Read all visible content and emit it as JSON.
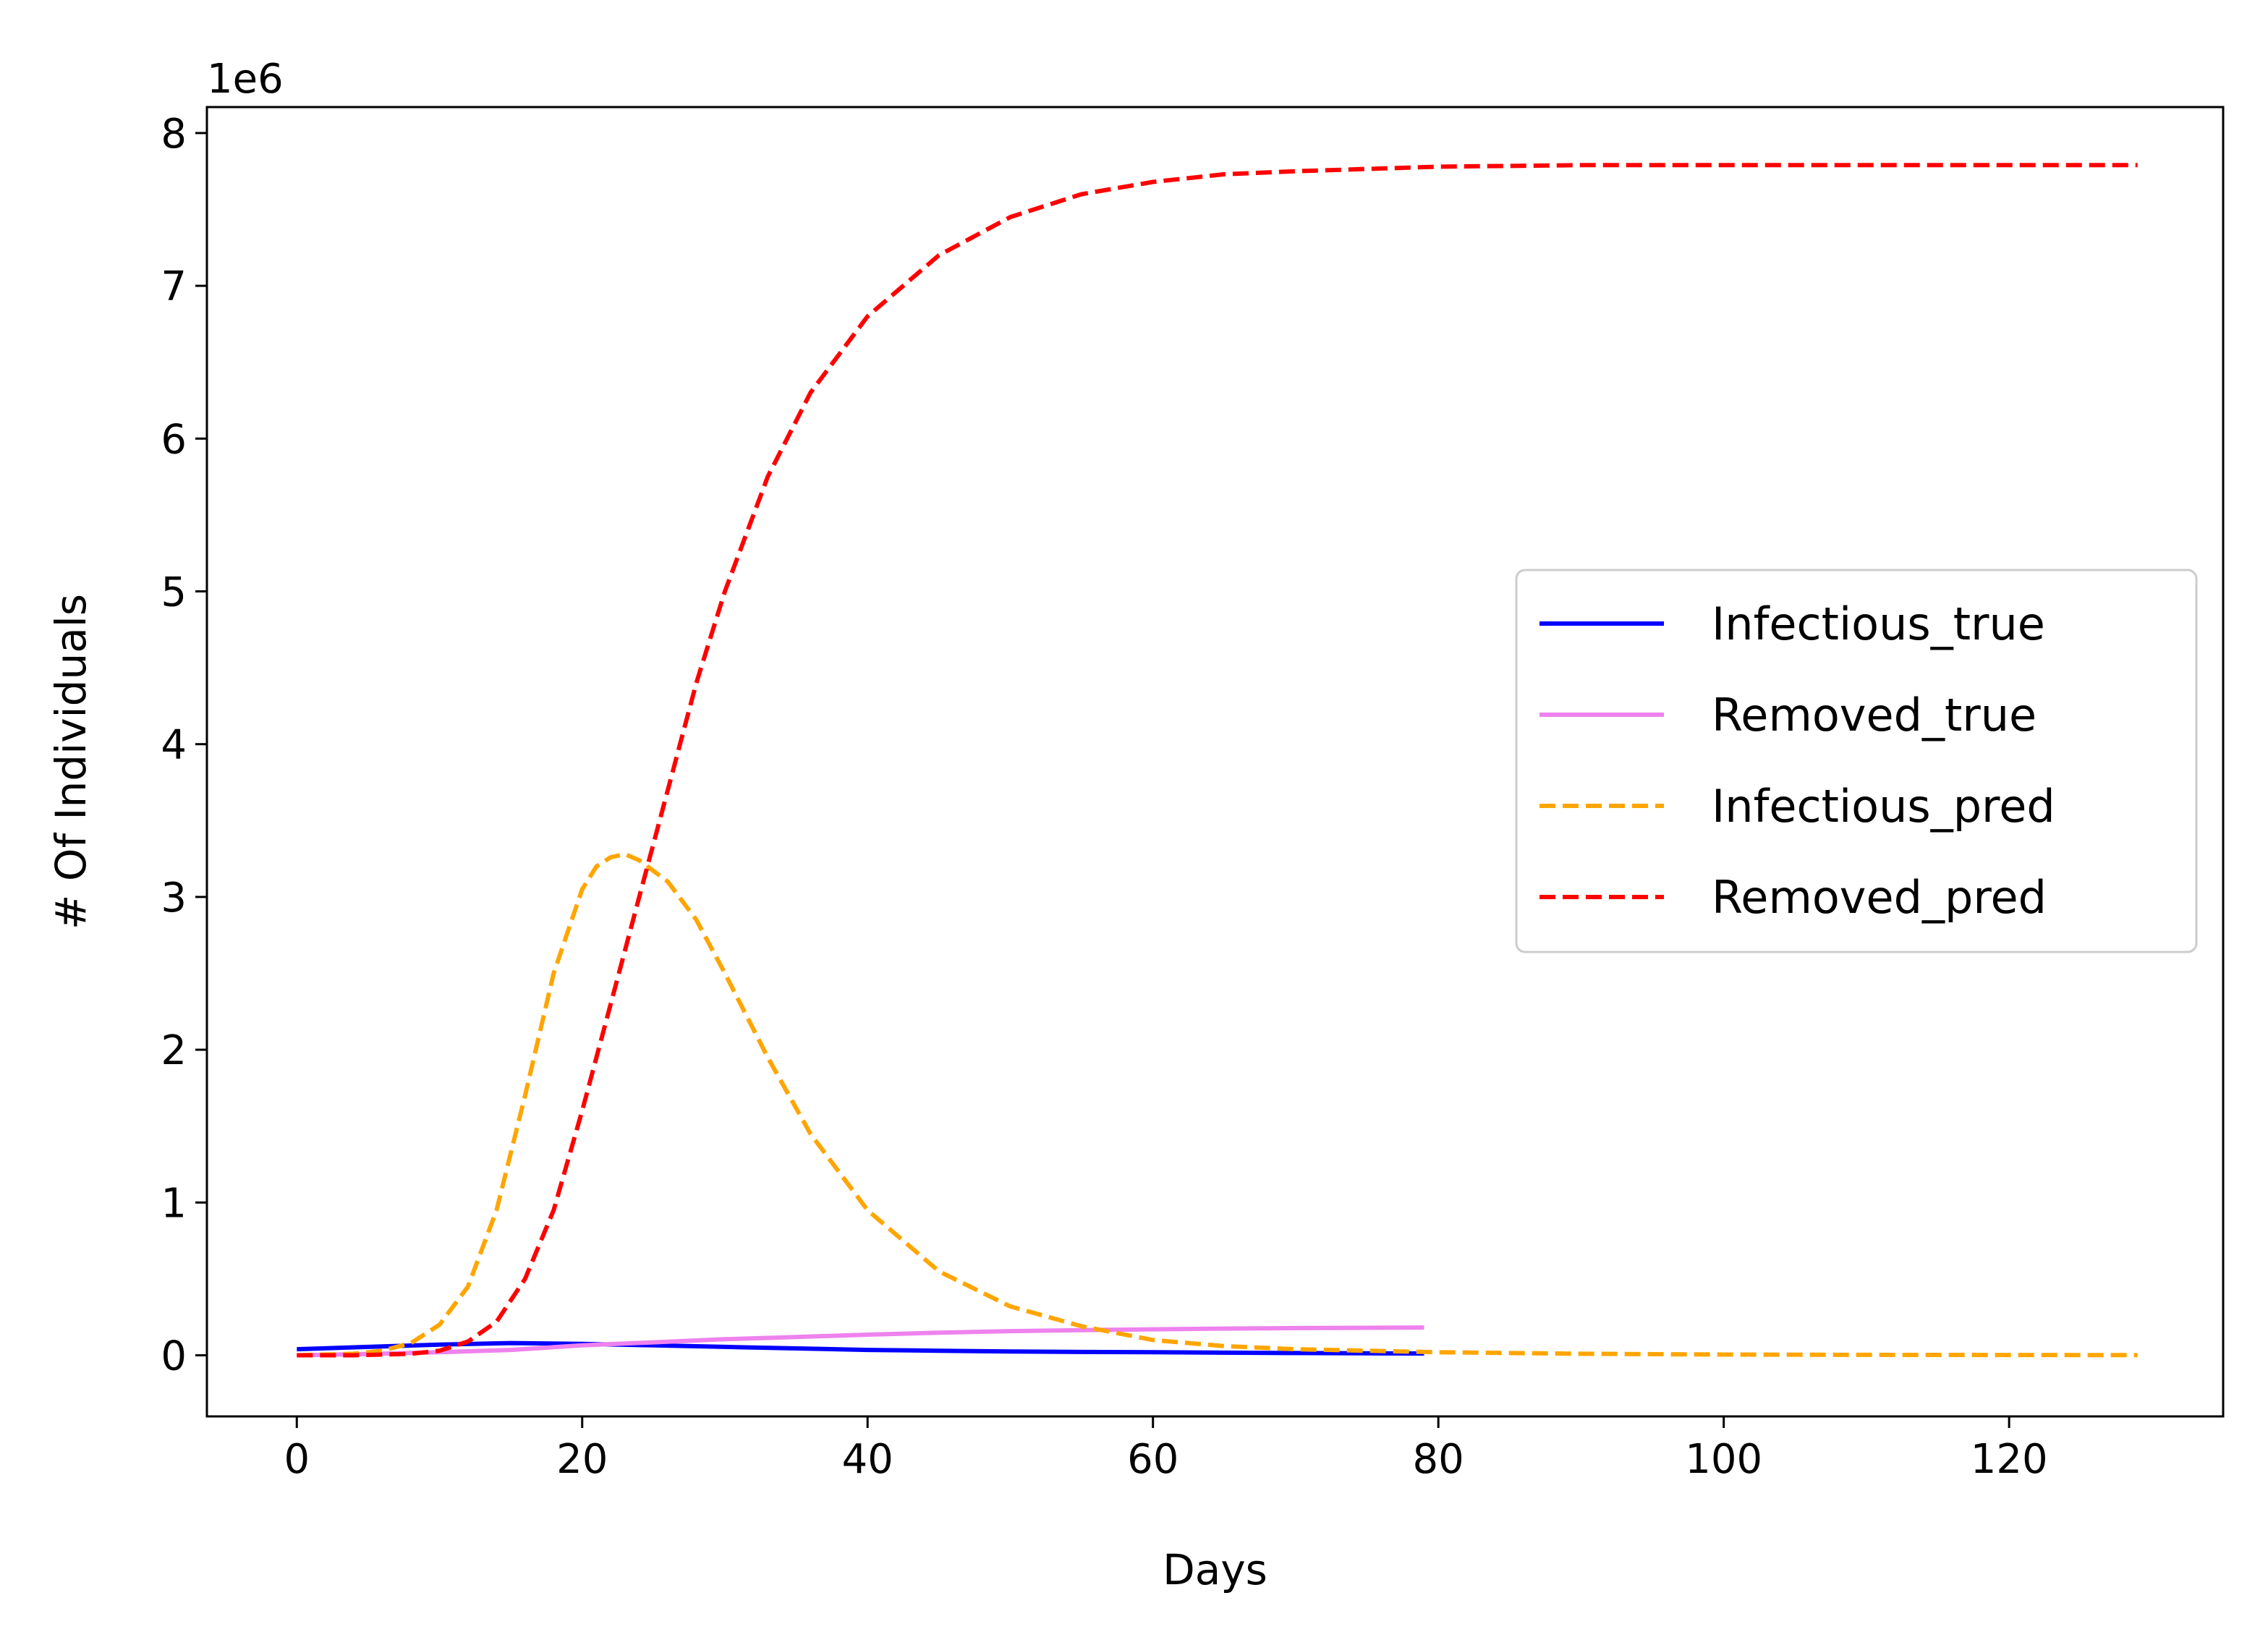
{
  "chart_data": {
    "type": "line",
    "xlabel": "Days",
    "ylabel": "# Of Individuals",
    "offset_text": "1e6",
    "xlim": [
      -6.3,
      135
    ],
    "ylim": [
      -0.4,
      8.17
    ],
    "xticks": [
      0,
      20,
      40,
      60,
      80,
      100,
      120
    ],
    "xtick_labels": [
      "0",
      "20",
      "40",
      "60",
      "80",
      "100",
      "120"
    ],
    "yticks": [
      0,
      1,
      2,
      3,
      4,
      5,
      6,
      7,
      8
    ],
    "ytick_labels": [
      "0",
      "1",
      "2",
      "3",
      "4",
      "5",
      "6",
      "7",
      "8"
    ],
    "y_units": "millions (x 1e6)",
    "grid": false,
    "legend_position": "center-right",
    "series": [
      {
        "name": "Infectious_true",
        "color": "#0000ff",
        "style": "solid",
        "x": [
          0,
          5,
          10,
          15,
          20,
          25,
          30,
          35,
          40,
          45,
          50,
          55,
          60,
          65,
          70,
          75,
          79
        ],
        "y": [
          0.04,
          0.055,
          0.07,
          0.08,
          0.075,
          0.065,
          0.055,
          0.045,
          0.035,
          0.03,
          0.025,
          0.022,
          0.02,
          0.017,
          0.015,
          0.013,
          0.012
        ]
      },
      {
        "name": "Removed_true",
        "color": "#ee82ee",
        "style": "solid",
        "x": [
          0,
          5,
          10,
          15,
          20,
          25,
          30,
          35,
          40,
          45,
          50,
          55,
          60,
          65,
          70,
          75,
          79
        ],
        "y": [
          0.0,
          0.008,
          0.02,
          0.035,
          0.065,
          0.085,
          0.105,
          0.12,
          0.135,
          0.148,
          0.158,
          0.165,
          0.17,
          0.175,
          0.178,
          0.18,
          0.182
        ]
      },
      {
        "name": "Infectious_pred",
        "color": "#ffa500",
        "style": "dashed",
        "x": [
          0,
          4,
          6,
          8,
          10,
          12,
          14,
          16,
          18,
          20,
          21,
          22,
          23,
          24,
          26,
          28,
          30,
          33,
          36,
          40,
          45,
          50,
          55,
          60,
          65,
          70,
          80,
          90,
          100,
          110,
          120,
          129
        ],
        "y": [
          0.0,
          0.01,
          0.03,
          0.08,
          0.2,
          0.45,
          0.95,
          1.7,
          2.5,
          3.05,
          3.2,
          3.26,
          3.28,
          3.24,
          3.1,
          2.85,
          2.5,
          1.95,
          1.45,
          0.95,
          0.55,
          0.32,
          0.19,
          0.1,
          0.06,
          0.04,
          0.02,
          0.01,
          0.005,
          0.003,
          0.002,
          0.001
        ]
      },
      {
        "name": "Removed_pred",
        "color": "#ff0000",
        "style": "dashed",
        "x": [
          0,
          4,
          8,
          10,
          12,
          14,
          16,
          18,
          20,
          22,
          24,
          26,
          28,
          30,
          33,
          36,
          40,
          45,
          50,
          55,
          60,
          65,
          70,
          80,
          90,
          100,
          110,
          120,
          129
        ],
        "y": [
          0.0,
          0.0,
          0.01,
          0.03,
          0.09,
          0.22,
          0.5,
          0.95,
          1.6,
          2.3,
          3.0,
          3.7,
          4.4,
          5.0,
          5.75,
          6.3,
          6.8,
          7.2,
          7.45,
          7.6,
          7.68,
          7.73,
          7.75,
          7.78,
          7.79,
          7.79,
          7.79,
          7.79,
          7.79
        ]
      }
    ]
  }
}
